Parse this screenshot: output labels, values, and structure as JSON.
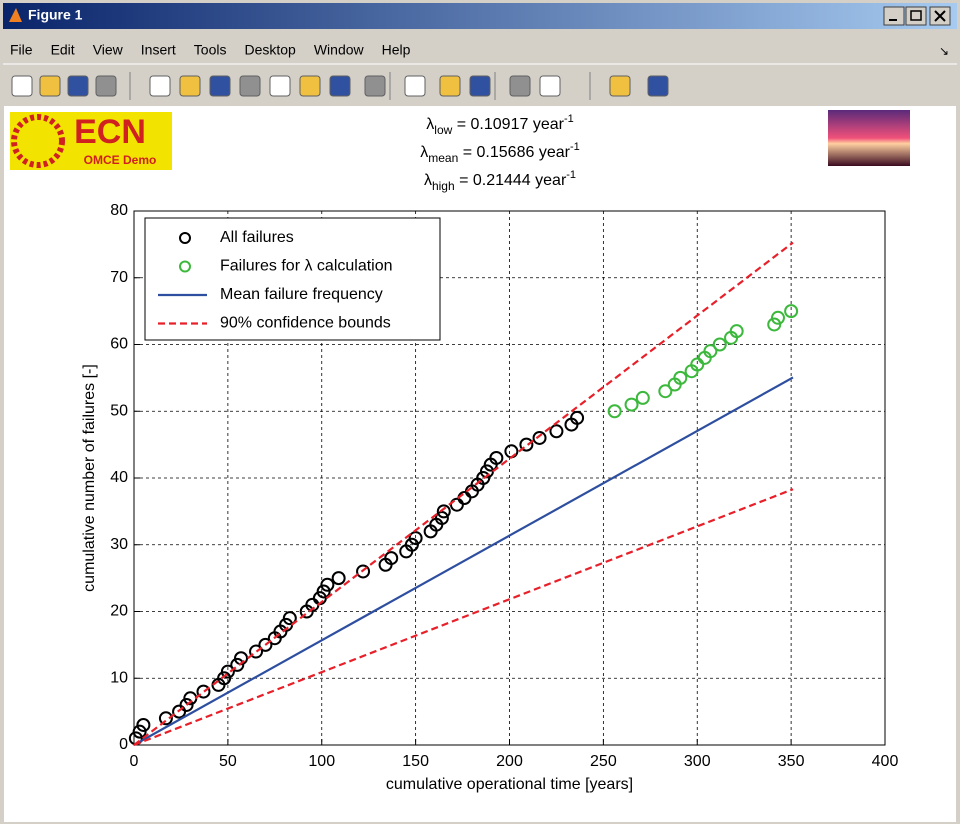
{
  "window": {
    "title": "Figure 1"
  },
  "menu": [
    "File",
    "Edit",
    "View",
    "Insert",
    "Tools",
    "Desktop",
    "Window",
    "Help"
  ],
  "logo": {
    "text": "ECN",
    "subtitle": "OMCE Demo"
  },
  "annotations": [
    {
      "symbol": "λ",
      "subscript": "low",
      "text": " = 0.10917 year",
      "superscript": "-1"
    },
    {
      "symbol": "λ",
      "subscript": "mean",
      "text": " = 0.15686 year",
      "superscript": "-1"
    },
    {
      "symbol": "λ",
      "subscript": "high",
      "text": " = 0.21444 year",
      "superscript": "-1"
    }
  ],
  "chart_data": {
    "type": "scatter",
    "xlabel": "cumulative operational time [years]",
    "ylabel": "cumulative number of failures [-]",
    "xlim": [
      0,
      400
    ],
    "ylim": [
      0,
      80
    ],
    "xticks": [
      0,
      50,
      100,
      150,
      200,
      250,
      300,
      350,
      400
    ],
    "yticks": [
      0,
      10,
      20,
      30,
      40,
      50,
      60,
      70,
      80
    ],
    "grid": true,
    "legend": "upper left",
    "series": [
      {
        "name": "All failures",
        "type": "scatter",
        "color": "#000000",
        "x": [
          1,
          3,
          5,
          17,
          24,
          28,
          30,
          37,
          45,
          48,
          50,
          55,
          57,
          65,
          70,
          75,
          78,
          81,
          83,
          92,
          95,
          99,
          101,
          103,
          109,
          122,
          134,
          137,
          145,
          148,
          150,
          158,
          161,
          164,
          165,
          172,
          176,
          180,
          183,
          186,
          188,
          190,
          193,
          201,
          209,
          216,
          225,
          233,
          236
        ],
        "values": [
          1,
          2,
          3,
          4,
          5,
          6,
          7,
          8,
          9,
          10,
          11,
          12,
          13,
          14,
          15,
          16,
          17,
          18,
          19,
          20,
          21,
          22,
          23,
          24,
          25,
          26,
          27,
          28,
          29,
          30,
          31,
          32,
          33,
          34,
          35,
          36,
          37,
          38,
          39,
          40,
          41,
          42,
          43,
          44,
          45,
          46,
          47,
          48,
          49
        ]
      },
      {
        "name": "Failures for λ calculation",
        "type": "scatter",
        "color": "#3cb83c",
        "x": [
          256,
          265,
          271,
          283,
          288,
          291,
          297,
          300,
          304,
          307,
          312,
          318,
          321,
          341,
          343,
          350
        ],
        "values": [
          50,
          51,
          52,
          53,
          54,
          55,
          56,
          57,
          58,
          59,
          60,
          61,
          62,
          63,
          64,
          65
        ]
      },
      {
        "name": "Mean failure frequency",
        "type": "line",
        "color": "#2e4fa0",
        "dashed": false,
        "lines": [
          {
            "x": [
              0,
              351
            ],
            "values": [
              0,
              55.06
            ]
          }
        ]
      },
      {
        "name": "90% confidence bounds",
        "type": "line",
        "color": "#e8202a",
        "dashed": true,
        "lines": [
          {
            "x": [
              0,
              351
            ],
            "values": [
              0,
              75.27
            ]
          },
          {
            "x": [
              0,
              351
            ],
            "values": [
              0,
              38.32
            ]
          }
        ]
      }
    ]
  }
}
